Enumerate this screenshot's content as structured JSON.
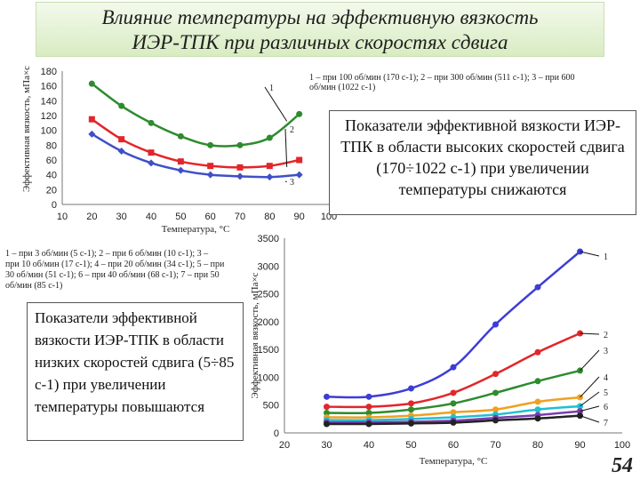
{
  "slide": {
    "title_line1": "Влияние температуры на эффективную вязкость",
    "title_line2": "ИЭР-ТПК при различных скоростях сдвига",
    "page_number": "54",
    "high_shear_note": "Показатели эффективной вязкости ИЭР-ТПК в области высоких скоростей сдвига (170÷1022 с-1) при увеличении температуры снижаются",
    "low_shear_note": "Показатели эффективной вязкости ИЭР-ТПК в области низких скоростей сдвига (5÷85 с-1) при увеличении температуры повышаются",
    "high_shear_legend": "1 – при 100 об/мин (170 с-1); 2 – при 300 об/мин (511 с-1); 3 – при 600 об/мин (1022 с-1)",
    "low_shear_legend": "1 – при 3 об/мин (5 с-1); 2 – при 6 об/мин (10 с-1); 3 – при 10 об/мин (17 с-1); 4 – при 20 об/мин (34 с-1); 5 – при 30 об/мин (51 с-1); 6 – при 40 об/мин (68 с-1); 7 – при 50 об/мин (85 с-1)"
  },
  "chart_data": [
    {
      "type": "line",
      "xlabel": "Температура, °С",
      "ylabel": "Эффективная вязкость, мПа×с",
      "xlim": [
        10,
        100
      ],
      "ylim": [
        0,
        180
      ],
      "xticks": [
        10,
        20,
        30,
        40,
        50,
        60,
        70,
        80,
        90,
        100
      ],
      "yticks": [
        0,
        20,
        40,
        60,
        80,
        100,
        120,
        140,
        160,
        180
      ],
      "grid": false,
      "x": [
        20,
        30,
        40,
        50,
        60,
        70,
        80,
        90
      ],
      "series": [
        {
          "name": "1",
          "color": "#2e8b2e",
          "values": [
            163,
            133,
            110,
            92,
            80,
            80,
            90,
            122
          ]
        },
        {
          "name": "2",
          "color": "#e2262a",
          "values": [
            115,
            88,
            70,
            58,
            52,
            50,
            52,
            60
          ]
        },
        {
          "name": "3",
          "color": "#3f4fc8",
          "values": [
            95,
            72,
            56,
            46,
            40,
            38,
            37,
            40
          ]
        }
      ]
    },
    {
      "type": "line",
      "xlabel": "Температура, °С",
      "ylabel": "Эффективная вязкость, мПа×с",
      "xlim": [
        20,
        100
      ],
      "ylim": [
        0,
        3500
      ],
      "xticks": [
        20,
        30,
        40,
        50,
        60,
        70,
        80,
        90,
        100
      ],
      "yticks": [
        0,
        500,
        1000,
        1500,
        2000,
        2500,
        3000,
        3500
      ],
      "grid": false,
      "x": [
        30,
        40,
        50,
        60,
        70,
        80,
        90
      ],
      "series": [
        {
          "name": "1",
          "color": "#3d3dd6",
          "values": [
            650,
            650,
            800,
            1180,
            1950,
            2620,
            3260
          ]
        },
        {
          "name": "2",
          "color": "#e2262a",
          "values": [
            470,
            470,
            530,
            720,
            1060,
            1450,
            1790
          ]
        },
        {
          "name": "3",
          "color": "#2e8b2e",
          "values": [
            360,
            360,
            420,
            530,
            720,
            930,
            1120
          ]
        },
        {
          "name": "4",
          "color": "#f0a020",
          "values": [
            280,
            280,
            310,
            370,
            420,
            560,
            640
          ]
        },
        {
          "name": "5",
          "color": "#20c0d0",
          "values": [
            230,
            230,
            250,
            280,
            330,
            420,
            480
          ]
        },
        {
          "name": "6",
          "color": "#7a3db0",
          "values": [
            190,
            190,
            200,
            220,
            270,
            320,
            390
          ]
        },
        {
          "name": "7",
          "color": "#222222",
          "values": [
            160,
            160,
            170,
            185,
            225,
            260,
            310
          ]
        }
      ]
    }
  ]
}
